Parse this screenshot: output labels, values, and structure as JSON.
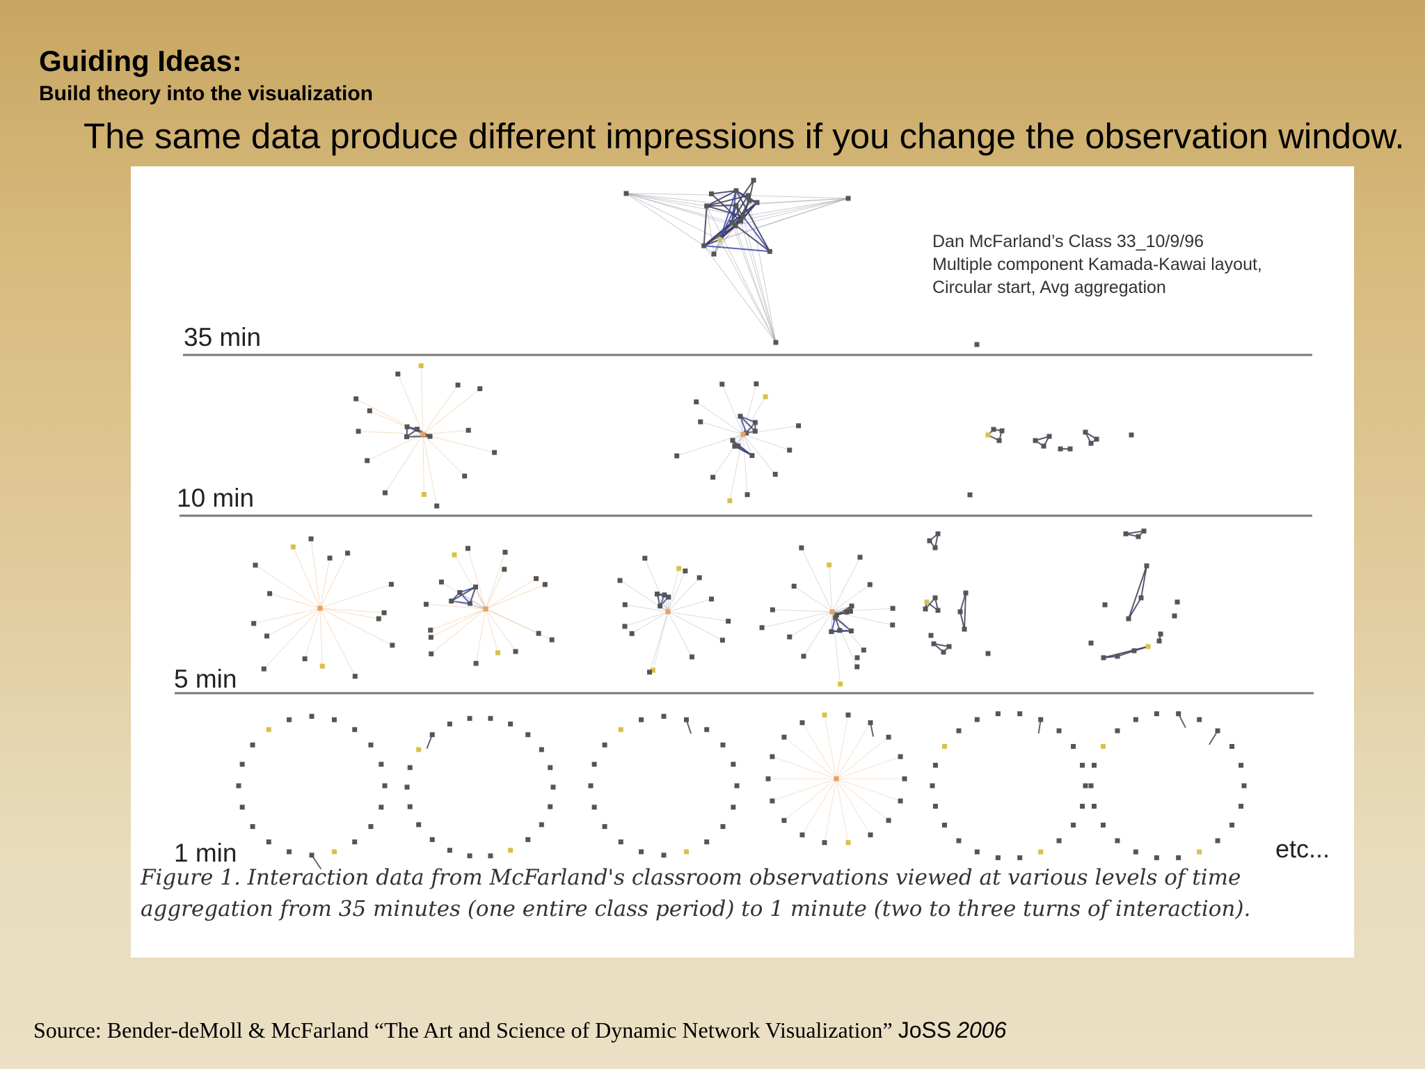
{
  "slide": {
    "title": "Guiding Ideas:",
    "subtitle": "Build theory into the visualization",
    "headline": "The same data produce different impressions if you change the observation window."
  },
  "figure": {
    "meta_lines": [
      "Dan McFarland’s Class 33_10/9/96",
      "Multiple component Kamada-Kawai layout,",
      "Circular start, Avg aggregation"
    ],
    "rows": [
      {
        "label": "35 min",
        "panels": 1
      },
      {
        "label": "10 min",
        "panels": 3
      },
      {
        "label": "5 min",
        "panels": 6
      },
      {
        "label": "1 min",
        "panels": 6
      }
    ],
    "etc": "etc...",
    "caption_line1": "Figure 1. Interaction data from McFarland's classroom observations viewed at various levels of time",
    "caption_line2": "aggregation from 35 minutes (one entire class period) to 1 minute (two to three turns of interaction)."
  },
  "source": {
    "text": "Source: Bender-deMoll & McFarland “The Art and Science of Dynamic Network Visualization”",
    "journal": "JoSS",
    "year": "2006"
  },
  "colors": {
    "node": "#555555",
    "highlight_node": "#d9c14a",
    "hub": "#e8a060",
    "edge": "#9a9aa8",
    "strong_edge": "#3a3a5a",
    "blue_edge": "#3a4aa8",
    "divider": "#777777"
  }
}
